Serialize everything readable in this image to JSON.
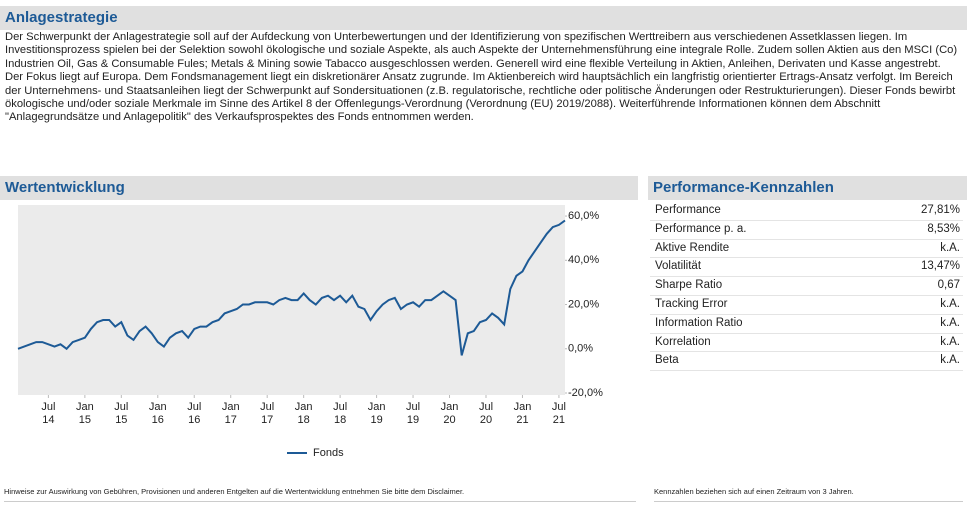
{
  "strategy": {
    "title": "Anlagestrategie",
    "text": "Der Schwerpunkt der Anlagestrategie soll auf der Aufdeckung von Unterbewertungen und der Identifizierung von spezifischen Werttreibern aus verschiedenen Assetklassen liegen. Im Investitionsprozess spielen bei der Selektion sowohl ökologische und soziale Aspekte, als auch Aspekte der Unternehmensführung eine integrale Rolle. Zudem sollen Aktien aus den MSCI (Co) Industrien Oil, Gas & Consumable Fules; Metals & Mining sowie Tabacco ausgeschlossen werden. Generell wird eine flexible Verteilung in Aktien, Anleihen, Derivaten und Kasse angestrebt. Der Fokus liegt auf Europa. Dem Fondsmanagement liegt ein diskretionärer Ansatz zugrunde. Im Aktienbereich wird hauptsächlich ein langfristig orientierter Ertrags-Ansatz verfolgt. Im Bereich der Unternehmens- und Staatsanleihen liegt der Schwerpunkt auf Sondersituationen (z.B. regulatorische, rechtliche oder politische Änderungen oder Restrukturierungen). Dieser Fonds bewirbt ökologische und/oder soziale Merkmale im Sinne des Artikel 8 der Offenlegungs-Verordnung (Verordnung (EU) 2019/2088). Weiterführende Informationen können dem Abschnitt \"Anlagegrundsätze und Anlagepolitik\" des Verkaufsprospektes des Fonds entnommen werden."
  },
  "chart_data": {
    "type": "line",
    "title": "Wertentwicklung",
    "x": [
      "2014-02",
      "2014-03",
      "2014-04",
      "2014-05",
      "2014-06",
      "2014-07",
      "2014-08",
      "2014-09",
      "2014-10",
      "2014-11",
      "2014-12",
      "2015-01",
      "2015-02",
      "2015-03",
      "2015-04",
      "2015-05",
      "2015-06",
      "2015-07",
      "2015-08",
      "2015-09",
      "2015-10",
      "2015-11",
      "2015-12",
      "2016-01",
      "2016-02",
      "2016-03",
      "2016-04",
      "2016-05",
      "2016-06",
      "2016-07",
      "2016-08",
      "2016-09",
      "2016-10",
      "2016-11",
      "2016-12",
      "2017-01",
      "2017-02",
      "2017-03",
      "2017-04",
      "2017-05",
      "2017-06",
      "2017-07",
      "2017-08",
      "2017-09",
      "2017-10",
      "2017-11",
      "2017-12",
      "2018-01",
      "2018-02",
      "2018-03",
      "2018-04",
      "2018-05",
      "2018-06",
      "2018-07",
      "2018-08",
      "2018-09",
      "2018-10",
      "2018-11",
      "2018-12",
      "2019-01",
      "2019-02",
      "2019-03",
      "2019-04",
      "2019-05",
      "2019-06",
      "2019-07",
      "2019-08",
      "2019-09",
      "2019-10",
      "2019-11",
      "2019-12",
      "2020-01",
      "2020-02",
      "2020-03",
      "2020-04",
      "2020-05",
      "2020-06",
      "2020-07",
      "2020-08",
      "2020-09",
      "2020-10",
      "2020-11",
      "2020-12",
      "2021-01",
      "2021-02",
      "2021-03",
      "2021-04",
      "2021-05",
      "2021-06",
      "2021-07",
      "2021-08"
    ],
    "series": [
      {
        "name": "Fonds",
        "color": "#1d5a96",
        "values": [
          0,
          1,
          2,
          3,
          3,
          2,
          1,
          2,
          0,
          3,
          4,
          5,
          9,
          12,
          13,
          13,
          10,
          12,
          6,
          4,
          8,
          10,
          7,
          3,
          1,
          5,
          7,
          8,
          5,
          9,
          10,
          10,
          12,
          13,
          16,
          17,
          18,
          20,
          20,
          21,
          21,
          21,
          20,
          22,
          23,
          22,
          22,
          25,
          22,
          20,
          23,
          24,
          22,
          24,
          21,
          24,
          19,
          18,
          13,
          17,
          20,
          22,
          23,
          18,
          20,
          21,
          19,
          22,
          22,
          24,
          26,
          24,
          22,
          -3,
          7,
          8,
          12,
          13,
          16,
          14,
          11,
          27,
          33,
          35,
          40,
          44,
          48,
          52,
          55,
          56,
          58
        ]
      }
    ],
    "xlim": [
      "2014-02",
      "2021-08"
    ],
    "xticks": [
      {
        "value": "2014-07",
        "label": "Jul 14"
      },
      {
        "value": "2015-01",
        "label": "Jan 15"
      },
      {
        "value": "2015-07",
        "label": "Jul 15"
      },
      {
        "value": "2016-01",
        "label": "Jan 16"
      },
      {
        "value": "2016-07",
        "label": "Jul 16"
      },
      {
        "value": "2017-01",
        "label": "Jan 17"
      },
      {
        "value": "2017-07",
        "label": "Jul 17"
      },
      {
        "value": "2018-01",
        "label": "Jan 18"
      },
      {
        "value": "2018-07",
        "label": "Jul 18"
      },
      {
        "value": "2019-01",
        "label": "Jan 19"
      },
      {
        "value": "2019-07",
        "label": "Jul 19"
      },
      {
        "value": "2020-01",
        "label": "Jan 20"
      },
      {
        "value": "2020-07",
        "label": "Jul 20"
      },
      {
        "value": "2021-01",
        "label": "Jan 21"
      },
      {
        "value": "2021-07",
        "label": "Jul 21"
      }
    ],
    "ylim": [
      -20,
      65
    ],
    "yticks": [
      {
        "value": 60,
        "label": "60,0%"
      },
      {
        "value": 40,
        "label": "40,0%"
      },
      {
        "value": 20,
        "label": "20,0%"
      },
      {
        "value": 0,
        "label": "0,0%"
      },
      {
        "value": -20,
        "label": "-20,0%"
      }
    ]
  },
  "performance": {
    "title": "Performance-Kennzahlen",
    "rows": [
      [
        "Performance",
        "27,81%"
      ],
      [
        "Performance p. a.",
        "8,53%"
      ],
      [
        "Aktive Rendite",
        "k.A."
      ],
      [
        "Volatilität",
        "13,47%"
      ],
      [
        "Sharpe Ratio",
        "0,67"
      ],
      [
        "Tracking Error",
        "k.A."
      ],
      [
        "Information Ratio",
        "k.A."
      ],
      [
        "Korrelation",
        "k.A."
      ],
      [
        "Beta",
        "k.A."
      ]
    ]
  },
  "footnotes": {
    "chart": "Hinweise zur Auswirkung von Gebühren, Provisionen und anderen Entgelten auf die Wertentwicklung entnehmen Sie bitte dem Disclaimer.",
    "performance": "Kennzahlen beziehen sich auf einen Zeitraum von 3 Jahren."
  }
}
